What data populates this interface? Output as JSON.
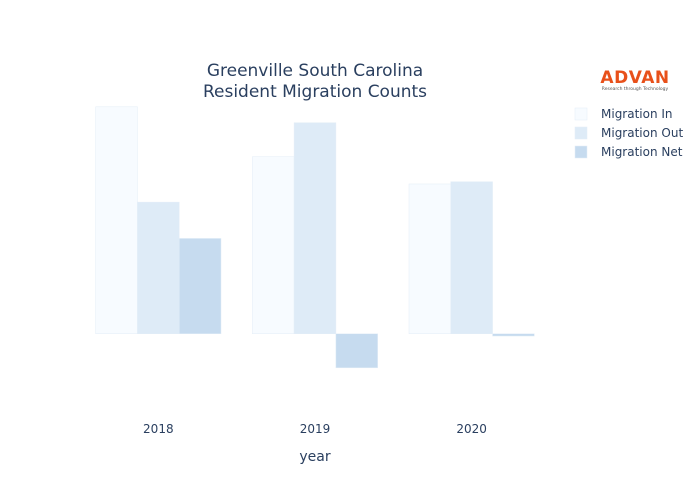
{
  "logo": {
    "name": "ADVAN",
    "tagline": "Research through Technology",
    "color": "#e8501a"
  },
  "chart_data": {
    "type": "bar",
    "title": [
      "Greenville South Carolina",
      "Resident Migration Counts"
    ],
    "xlabel": "year",
    "ylabel": "",
    "categories": [
      "2018",
      "2019",
      "2020"
    ],
    "ylim": [
      -380,
      1030
    ],
    "grid": false,
    "legend_position": "top-right",
    "series": [
      {
        "name": "Migration In",
        "values": [
          1000,
          780,
          660
        ],
        "color": "#f7fbff"
      },
      {
        "name": "Migration Out",
        "values": [
          580,
          930,
          670
        ],
        "color": "#deebf7"
      },
      {
        "name": "Migration Net",
        "values": [
          420,
          -150,
          -10
        ],
        "color": "#c6dbef"
      }
    ]
  }
}
